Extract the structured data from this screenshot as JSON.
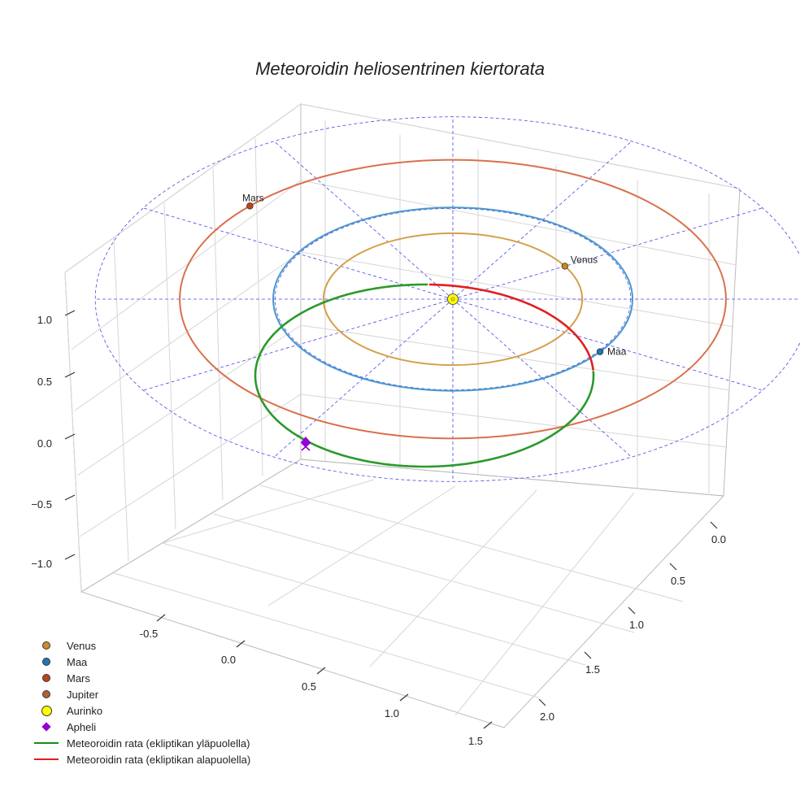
{
  "chart_data": {
    "type": "line",
    "title": "Meteoroidin heliosentrinen kiertorata",
    "axes": {
      "x": {
        "ticks": [
          "-0.5",
          "0.0",
          "0.5",
          "1.0",
          "1.5"
        ]
      },
      "y": {
        "ticks": [
          "0.0",
          "0.5",
          "1.0",
          "1.5",
          "2.0"
        ]
      },
      "z": {
        "ticks": [
          "1.0",
          "0.5",
          "0.0",
          "−0.5",
          "−1.0"
        ]
      }
    },
    "grid": true,
    "legend_placement": "bottom-left",
    "planets": [
      {
        "name": "Venus",
        "orbit_radius": 0.72,
        "color": "#c98a1a",
        "orbit_color": "#d4a04a",
        "angle_deg": 30
      },
      {
        "name": "Maa",
        "orbit_radius": 1.0,
        "color": "#1f77b4",
        "orbit_color": "#4a98cf",
        "angle_deg": -35
      },
      {
        "name": "Mars",
        "orbit_radius": 1.52,
        "color": "#c0441b",
        "orbit_color": "#d9704c",
        "angle_deg": 138
      }
    ],
    "sun": {
      "name": "Aurinko",
      "color": "#ffff00"
    },
    "aphelion": {
      "name": "Apheli",
      "color": "#9400d3"
    },
    "meteoroid_orbit": {
      "above_color": "#2a9a2a",
      "below_color": "#e02020"
    },
    "ecliptic_grid_color": "#4a4ae0"
  },
  "legend": [
    {
      "label": "Venus",
      "kind": "dot",
      "color": "#d08a2a"
    },
    {
      "label": "Maa",
      "kind": "dot",
      "color": "#1f77b4"
    },
    {
      "label": "Mars",
      "kind": "dot",
      "color": "#c0441b"
    },
    {
      "label": "Jupiter",
      "kind": "dot",
      "color": "#b0603a"
    },
    {
      "label": "Aurinko",
      "kind": "big-dot",
      "color": "#ffff00"
    },
    {
      "label": "Apheli",
      "kind": "diamond",
      "color": "#9400d3"
    },
    {
      "label": "Meteoroidin rata (ekliptikan yläpuolella)",
      "kind": "line",
      "color": "#1a8a1a"
    },
    {
      "label": "Meteoroidin rata (ekliptikan alapuolella)",
      "kind": "line",
      "color": "#e02020"
    }
  ]
}
